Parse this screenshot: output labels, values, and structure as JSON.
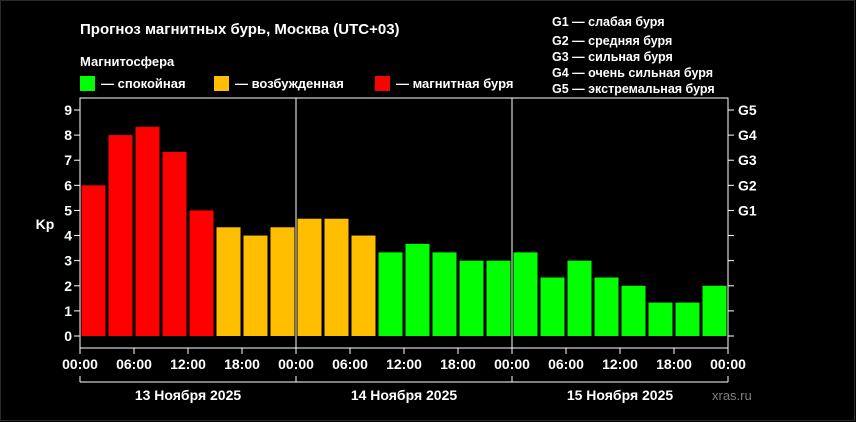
{
  "chart_data": {
    "type": "bar",
    "title": "Прогноз магнитных бурь, Москва (UTC+03)",
    "legend_title": "Магнитосфера",
    "legend": [
      {
        "label": "— спокойная",
        "color": "#00ff00"
      },
      {
        "label": "— возбужденная",
        "color": "#ffbf00"
      },
      {
        "label": "— магнитная буря",
        "color": "#ff0000"
      }
    ],
    "g_scale": [
      "G1 — слабая буря",
      "G2 — средняя буря",
      "G3 — сильная буря",
      "G4 — очень сильная буря",
      "G5 — экстремальная буря"
    ],
    "ylabel": "Kp",
    "ylim": [
      0,
      9
    ],
    "y_ticks": [
      "0",
      "1",
      "2",
      "3",
      "4",
      "5",
      "6",
      "7",
      "8",
      "9"
    ],
    "g_ticks": [
      "G1",
      "G2",
      "G3",
      "G4",
      "G5"
    ],
    "x_ticks": [
      "00:00",
      "06:00",
      "12:00",
      "18:00",
      "00:00",
      "06:00",
      "12:00",
      "18:00",
      "00:00",
      "06:00",
      "12:00",
      "18:00",
      "00:00"
    ],
    "days": [
      "13 Ноября 2025",
      "14 Ноября 2025",
      "15 Ноября 2025"
    ],
    "values": [
      6.0,
      8.0,
      8.33,
      7.33,
      5.0,
      4.33,
      4.0,
      4.33,
      4.67,
      4.67,
      4.0,
      3.33,
      3.67,
      3.33,
      3.0,
      3.0,
      3.33,
      2.33,
      3.0,
      2.33,
      2.0,
      1.33,
      1.33,
      2.0
    ],
    "colors": {
      "quiet": "#00ff00",
      "active": "#ffbf00",
      "storm": "#ff0000"
    },
    "grid": false
  },
  "watermark": "xras.ru"
}
